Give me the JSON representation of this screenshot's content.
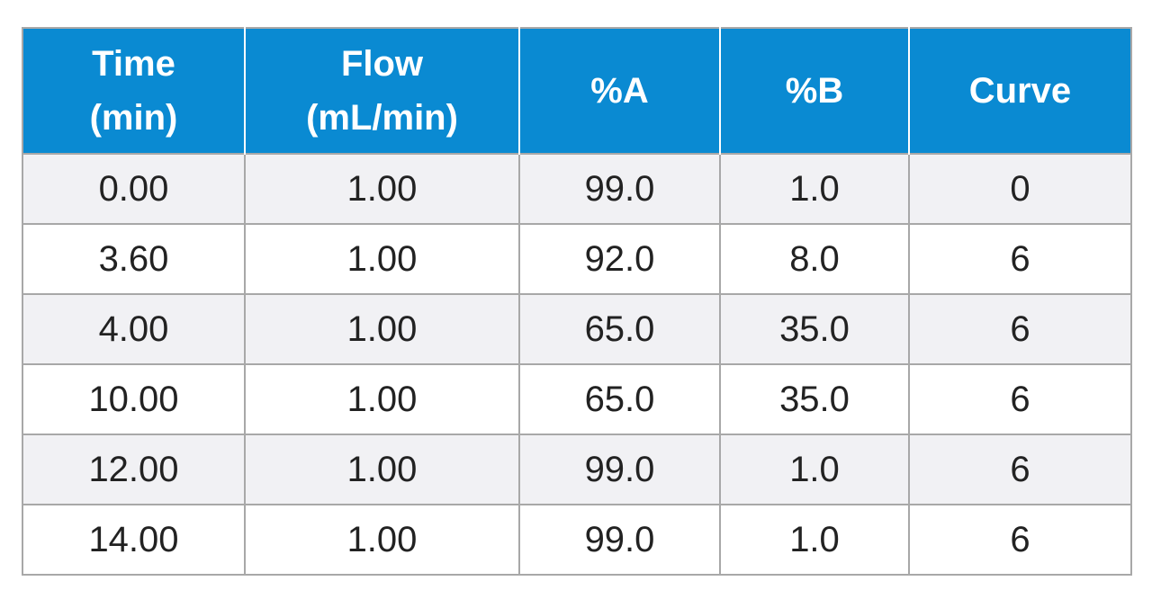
{
  "table": {
    "header": [
      [
        "Time",
        "(min)"
      ],
      [
        "Flow",
        "(mL/min)"
      ],
      [
        "%A"
      ],
      [
        "%B"
      ],
      [
        "Curve"
      ]
    ],
    "rows": [
      [
        "0.00",
        "1.00",
        "99.0",
        "1.0",
        "0"
      ],
      [
        "3.60",
        "1.00",
        "92.0",
        "8.0",
        "6"
      ],
      [
        "4.00",
        "1.00",
        "65.0",
        "35.0",
        "6"
      ],
      [
        "10.00",
        "1.00",
        "65.0",
        "35.0",
        "6"
      ],
      [
        "12.00",
        "1.00",
        "99.0",
        "1.0",
        "6"
      ],
      [
        "14.00",
        "1.00",
        "99.0",
        "1.0",
        "6"
      ]
    ]
  }
}
